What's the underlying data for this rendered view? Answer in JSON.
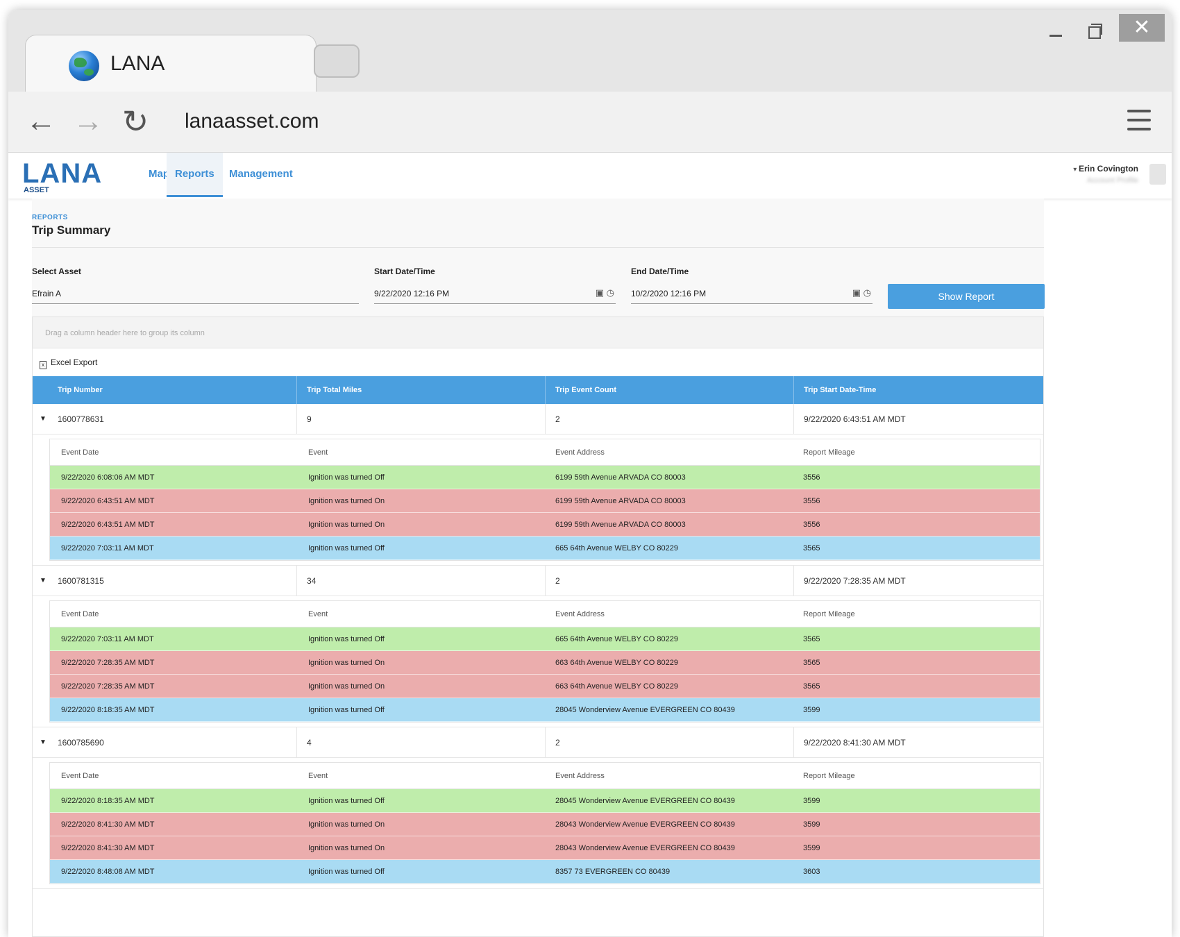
{
  "browser": {
    "tab_title": "LANA",
    "url": "lanaasset.com"
  },
  "app": {
    "logo": "LANA",
    "logo_sub": "ASSET",
    "nav": [
      "Map",
      "Reports",
      "Management"
    ],
    "user_name": "Erin Covington",
    "user_sub": "Account Profile"
  },
  "page": {
    "breadcrumb": "REPORTS",
    "title": "Trip Summary"
  },
  "filters": {
    "asset_label": "Select Asset",
    "asset_value": "Efrain A",
    "start_label": "Start Date/Time",
    "start_value": "9/22/2020 12:16 PM",
    "end_label": "End Date/Time",
    "end_value": "10/2/2020 12:16 PM",
    "show_button": "Show Report"
  },
  "grid": {
    "group_hint": "Drag a column header here to group its column",
    "export_label": "Excel Export",
    "columns": [
      "Trip Number",
      "Trip Total Miles",
      "Trip Event Count",
      "Trip Start Date-Time"
    ],
    "detail_columns": [
      "Event Date",
      "Event",
      "Event Address",
      "Report Mileage"
    ],
    "trips": [
      {
        "number": "1600778631",
        "miles": "9",
        "count": "2",
        "start": "9/22/2020 6:43:51 AM MDT",
        "events": [
          {
            "date": "9/22/2020 6:08:06 AM MDT",
            "event": "Ignition was turned Off",
            "address": "6199 59th Avenue ARVADA CO 80003",
            "mileage": "3556",
            "color": "green"
          },
          {
            "date": "9/22/2020 6:43:51 AM MDT",
            "event": "Ignition was turned On",
            "address": "6199 59th Avenue ARVADA CO 80003",
            "mileage": "3556",
            "color": "red"
          },
          {
            "date": "9/22/2020 6:43:51 AM MDT",
            "event": "Ignition was turned On",
            "address": "6199 59th Avenue ARVADA CO 80003",
            "mileage": "3556",
            "color": "red"
          },
          {
            "date": "9/22/2020 7:03:11 AM MDT",
            "event": "Ignition was turned Off",
            "address": "665 64th Avenue WELBY CO 80229",
            "mileage": "3565",
            "color": "blue"
          }
        ]
      },
      {
        "number": "1600781315",
        "miles": "34",
        "count": "2",
        "start": "9/22/2020 7:28:35 AM MDT",
        "events": [
          {
            "date": "9/22/2020 7:03:11 AM MDT",
            "event": "Ignition was turned Off",
            "address": "665 64th Avenue WELBY CO 80229",
            "mileage": "3565",
            "color": "green"
          },
          {
            "date": "9/22/2020 7:28:35 AM MDT",
            "event": "Ignition was turned On",
            "address": "663 64th Avenue WELBY CO 80229",
            "mileage": "3565",
            "color": "red"
          },
          {
            "date": "9/22/2020 7:28:35 AM MDT",
            "event": "Ignition was turned On",
            "address": "663 64th Avenue WELBY CO 80229",
            "mileage": "3565",
            "color": "red"
          },
          {
            "date": "9/22/2020 8:18:35 AM MDT",
            "event": "Ignition was turned Off",
            "address": "28045 Wonderview Avenue EVERGREEN CO 80439",
            "mileage": "3599",
            "color": "blue"
          }
        ]
      },
      {
        "number": "1600785690",
        "miles": "4",
        "count": "2",
        "start": "9/22/2020 8:41:30 AM MDT",
        "events": [
          {
            "date": "9/22/2020 8:18:35 AM MDT",
            "event": "Ignition was turned Off",
            "address": "28045 Wonderview Avenue EVERGREEN CO 80439",
            "mileage": "3599",
            "color": "green"
          },
          {
            "date": "9/22/2020 8:41:30 AM MDT",
            "event": "Ignition was turned On",
            "address": "28043 Wonderview Avenue EVERGREEN CO 80439",
            "mileage": "3599",
            "color": "red"
          },
          {
            "date": "9/22/2020 8:41:30 AM MDT",
            "event": "Ignition was turned On",
            "address": "28043 Wonderview Avenue EVERGREEN CO 80439",
            "mileage": "3599",
            "color": "red"
          },
          {
            "date": "9/22/2020 8:48:08 AM MDT",
            "event": "Ignition was turned Off",
            "address": "8357 73 EVERGREEN CO 80439",
            "mileage": "3603",
            "color": "blue"
          }
        ]
      }
    ]
  }
}
